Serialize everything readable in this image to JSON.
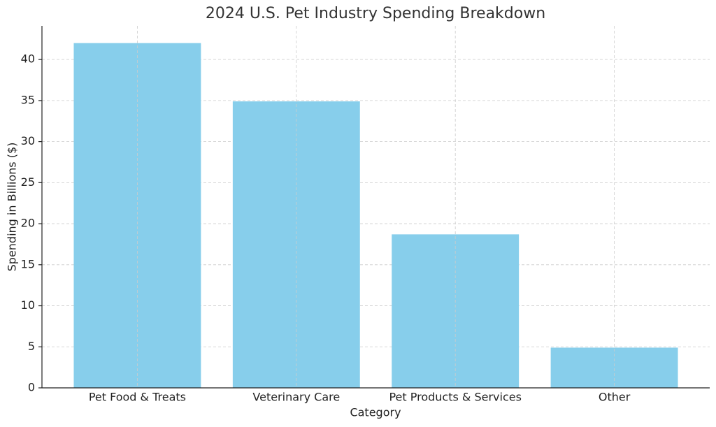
{
  "chart_data": {
    "type": "bar",
    "title": "2024 U.S. Pet Industry Spending Breakdown",
    "x_label": "Category",
    "y_label": "Spending in Billions ($)",
    "categories": [
      "Pet Food & Treats",
      "Veterinary Care",
      "Pet Products & Services",
      "Other"
    ],
    "values": [
      42,
      34.9,
      18.7,
      4.9
    ],
    "color": "#87ceeb",
    "ylim": [
      0,
      44.1
    ],
    "yticks": [
      0,
      5,
      10,
      15,
      20,
      25,
      30,
      35,
      40
    ],
    "grid": true
  }
}
